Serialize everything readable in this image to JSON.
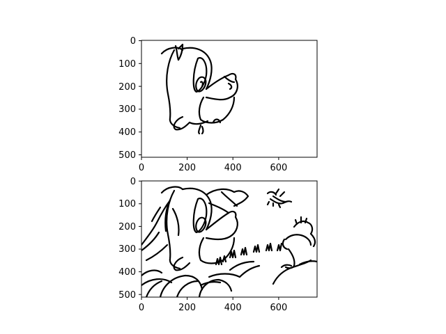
{
  "figure": {
    "background": "#ffffff",
    "line_color": "#000000"
  },
  "chart_data": [
    {
      "type": "image",
      "content": "line-art sketch of a cartoon character head",
      "xlim": [
        0,
        768
      ],
      "ylim": [
        512,
        0
      ],
      "xticks": [
        0,
        200,
        400,
        600
      ],
      "yticks": [
        0,
        100,
        200,
        300,
        400,
        500
      ],
      "xtick_labels": [
        "0",
        "200",
        "400",
        "600"
      ],
      "ytick_labels": [
        "0",
        "100",
        "200",
        "300",
        "400",
        "500"
      ],
      "grid": false
    },
    {
      "type": "image",
      "content": "line-art sketch of the same character within a busier scene with a second creature and foliage",
      "xlim": [
        0,
        768
      ],
      "ylim": [
        512,
        0
      ],
      "xticks": [
        0,
        200,
        400,
        600
      ],
      "yticks": [
        0,
        100,
        200,
        300,
        400,
        500
      ],
      "xtick_labels": [
        "0",
        "200",
        "400",
        "600"
      ],
      "ytick_labels": [
        "0",
        "100",
        "200",
        "300",
        "400",
        "500"
      ],
      "grid": false
    }
  ]
}
